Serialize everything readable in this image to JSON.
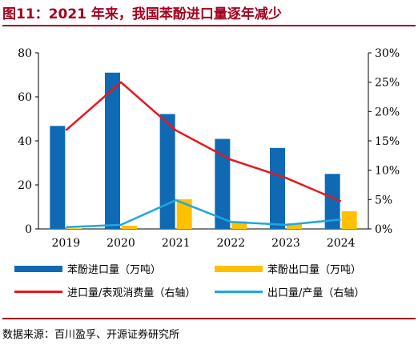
{
  "title": "图11：2021 年来，我国苯酚进口量逐年减少",
  "source": "数据来源：百川盈孚、开源证券研究所",
  "colors": {
    "accent": "#a3001e",
    "import_bar": "#0f6ab3",
    "export_bar": "#ffc000",
    "import_ratio_line": "#e8161d",
    "export_ratio_line": "#1fa7e1"
  },
  "chart_data": {
    "type": "bar",
    "categories": [
      "2019",
      "2020",
      "2021",
      "2022",
      "2023",
      "2024"
    ],
    "left_axis": {
      "ylim": [
        0,
        80
      ],
      "ticks": [
        "0",
        "20",
        "40",
        "60",
        "80"
      ]
    },
    "right_axis": {
      "ylim": [
        0,
        30
      ],
      "ticks": [
        "0%",
        "5%",
        "10%",
        "15%",
        "20%",
        "25%",
        "30%"
      ]
    },
    "series": [
      {
        "name": "苯酚进口量（万吨）",
        "type": "bar",
        "axis": "left",
        "values": [
          46.8,
          71.0,
          52.2,
          40.9,
          36.8,
          25.0
        ]
      },
      {
        "name": "苯酚出口量（万吨）",
        "type": "bar",
        "axis": "left",
        "values": [
          0.3,
          1.5,
          13.5,
          3.5,
          2.5,
          8.0
        ]
      },
      {
        "name": "进口量/表观消费量（右轴）",
        "type": "line",
        "axis": "right",
        "values": [
          16.8,
          25.0,
          16.8,
          11.8,
          8.7,
          4.7
        ]
      },
      {
        "name": "出口量/产量（右轴）",
        "type": "line",
        "axis": "right",
        "values": [
          0.3,
          0.7,
          4.9,
          1.2,
          0.7,
          1.6
        ]
      }
    ],
    "grid": false,
    "legend_position": "bottom"
  }
}
